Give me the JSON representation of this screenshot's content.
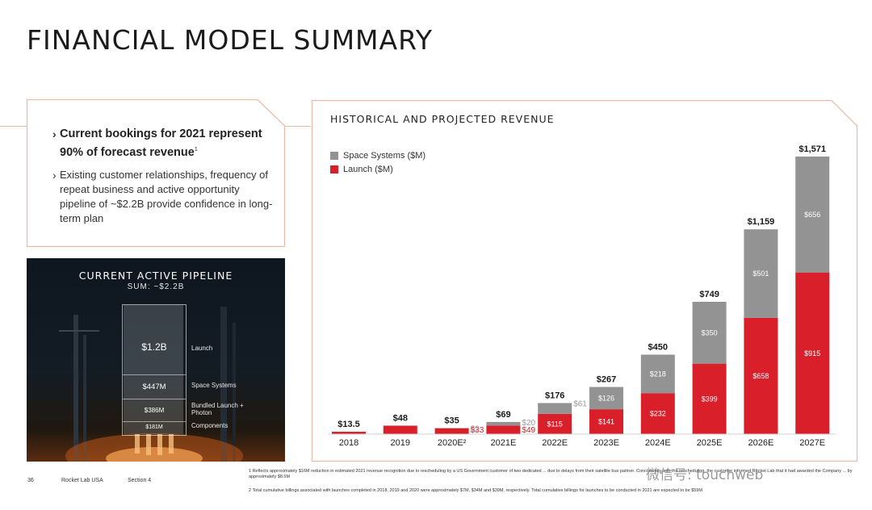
{
  "page": {
    "title": "FINANCIAL MODEL SUMMARY"
  },
  "bullets": {
    "main": "Current bookings for 2021 represent 90% of forecast revenue",
    "main_sup": "1",
    "sub": "Existing customer relationships, frequency of repeat business and active opportunity pipeline of ~$2.2B provide confidence in long-term plan"
  },
  "pipeline": {
    "title": "CURRENT ACTIVE PIPELINE",
    "sum": "SUM: ~$2.2B",
    "segments": [
      {
        "value": "$1.2B",
        "label": "Launch"
      },
      {
        "value": "$447M",
        "label": "Space Systems"
      },
      {
        "value": "$386M",
        "label": "Bundled Launch + Photon"
      },
      {
        "value": "$181M",
        "label": "Components"
      }
    ]
  },
  "chart_data": {
    "type": "bar",
    "stacked": true,
    "title": "HISTORICAL AND PROJECTED REVENUE",
    "categories": [
      "2018",
      "2019",
      "2020E²",
      "2021E",
      "2022E",
      "2023E",
      "2024E",
      "2025E",
      "2026E",
      "2027E"
    ],
    "series": [
      {
        "name": "Launch ($M)",
        "color": "#d81f2a",
        "values": [
          13.5,
          48,
          33,
          49,
          115,
          141,
          232,
          399,
          658,
          915
        ],
        "labels": [
          "",
          "",
          "$33",
          "$49",
          "$115",
          "$141",
          "$232",
          "$399",
          "$658",
          "$915"
        ]
      },
      {
        "name": "Space Systems ($M)",
        "color": "#939393",
        "values": [
          0,
          0,
          2,
          20,
          61,
          126,
          218,
          350,
          501,
          656
        ],
        "labels": [
          "",
          "",
          "$2",
          "$20",
          "$61",
          "$126",
          "$218",
          "$350",
          "$501",
          "$656"
        ]
      }
    ],
    "totals": [
      "$13.5",
      "$48",
      "$35",
      "$69",
      "$176",
      "$267",
      "$450",
      "$749",
      "$1,159",
      "$1,571"
    ],
    "ylim": [
      0,
      1600
    ],
    "legend_position": "top-left"
  },
  "footer": {
    "page_number": "36",
    "company": "Rocket Lab USA",
    "section": "Section 4",
    "note1": "1 Reflects approximately $16M reduction in estimated 2021 revenue recognition due to rescheduling by a US Government customer of two dedicated ... due to delays from their satellite bus partner. Concurrently with the rescheduling, the customer informed Rocket Lab that it had awarded the Company ... by approximately $8.5M",
    "note2": "2 Total cumulative billings associated with launches completed in 2018, 2019 and 2020 were approximately $7M, $34M and $39M, respectively. Total cumulative billings for launches to be conducted in 2021 are expected to be $59M"
  },
  "watermark": "微信号: touchweb"
}
